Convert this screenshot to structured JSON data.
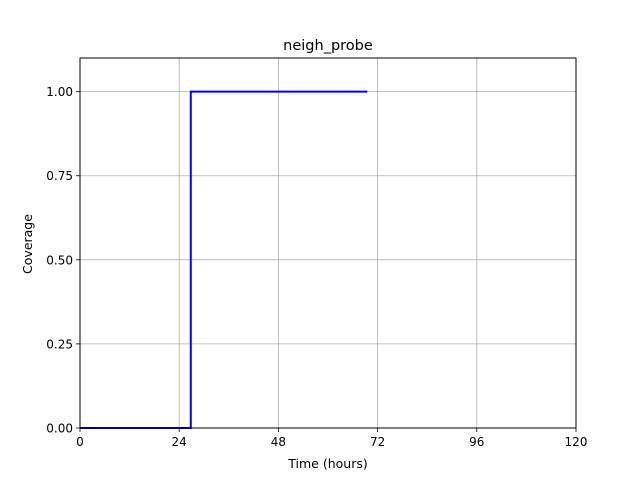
{
  "chart_data": {
    "type": "line",
    "title": "neigh_probe",
    "xlabel": "Time (hours)",
    "ylabel": "Coverage",
    "xlim": [
      0,
      120
    ],
    "ylim": [
      0,
      1.1
    ],
    "xticks": [
      0,
      24,
      48,
      72,
      96,
      120
    ],
    "xtick_labels": [
      "0",
      "24",
      "48",
      "72",
      "96",
      "120"
    ],
    "yticks": [
      0,
      0.25,
      0.5,
      0.75,
      1.0
    ],
    "ytick_labels": [
      "0.00",
      "0.25",
      "0.50",
      "0.75",
      "1.00"
    ],
    "grid": true,
    "legend": "none",
    "series": [
      {
        "line_style": "step",
        "color": "#0000ff",
        "x": [
          0,
          26.8,
          26.8,
          69.5
        ],
        "y": [
          0,
          0,
          1.0,
          1.0
        ]
      }
    ]
  }
}
